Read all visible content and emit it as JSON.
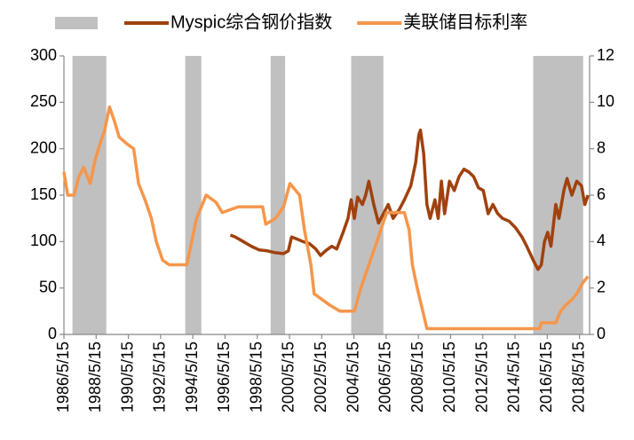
{
  "chart_data": {
    "type": "line",
    "shade_color": "#c0c0c0",
    "shaded_periods": [
      [
        1986.9,
        1989.0
      ],
      [
        1993.9,
        1994.9
      ],
      [
        1999.2,
        2000.1
      ],
      [
        2004.2,
        2006.2
      ],
      [
        2015.5,
        2018.6
      ]
    ],
    "xlim": [
      1986.37,
      2019.0
    ],
    "xticks": [
      {
        "value": 1986.37,
        "label": "1986/5/15"
      },
      {
        "value": 1988.37,
        "label": "1988/5/15"
      },
      {
        "value": 1990.37,
        "label": "1990/5/15"
      },
      {
        "value": 1992.37,
        "label": "1992/5/15"
      },
      {
        "value": 1994.37,
        "label": "1994/5/15"
      },
      {
        "value": 1996.37,
        "label": "1996/5/15"
      },
      {
        "value": 1998.37,
        "label": "1998/5/15"
      },
      {
        "value": 2000.37,
        "label": "2000/5/15"
      },
      {
        "value": 2002.37,
        "label": "2002/5/15"
      },
      {
        "value": 2004.37,
        "label": "2004/5/15"
      },
      {
        "value": 2006.37,
        "label": "2006/5/15"
      },
      {
        "value": 2008.37,
        "label": "2008/5/15"
      },
      {
        "value": 2010.37,
        "label": "2010/5/15"
      },
      {
        "value": 2012.37,
        "label": "2012/5/15"
      },
      {
        "value": 2014.37,
        "label": "2014/5/15"
      },
      {
        "value": 2016.37,
        "label": "2016/5/15"
      },
      {
        "value": 2018.37,
        "label": "2018/5/15"
      }
    ],
    "ylim": [
      0,
      300
    ],
    "yticks": [
      0,
      50,
      100,
      150,
      200,
      250,
      300
    ],
    "y2lim": [
      0,
      12
    ],
    "y2ticks": [
      0,
      2,
      4,
      6,
      8,
      10,
      12
    ],
    "series": [
      {
        "name": "Myspic综合钢价指数",
        "color": "#a0410e",
        "axis": "y",
        "x": [
          1996.7,
          1997.0,
          1997.5,
          1998.0,
          1998.5,
          1999.0,
          1999.5,
          2000.0,
          2000.3,
          2000.5,
          2000.8,
          2001.2,
          2001.6,
          2002.0,
          2002.3,
          2002.6,
          2003.0,
          2003.3,
          2003.7,
          2004.0,
          2004.2,
          2004.4,
          2004.6,
          2004.9,
          2005.1,
          2005.3,
          2005.6,
          2005.9,
          2006.2,
          2006.5,
          2006.8,
          2007.2,
          2007.5,
          2007.9,
          2008.2,
          2008.4,
          2008.5,
          2008.7,
          2008.9,
          2009.1,
          2009.4,
          2009.6,
          2009.8,
          2010.0,
          2010.3,
          2010.6,
          2010.9,
          2011.2,
          2011.5,
          2011.8,
          2012.1,
          2012.4,
          2012.7,
          2013.0,
          2013.3,
          2013.6,
          2014.0,
          2014.4,
          2014.8,
          2015.1,
          2015.5,
          2015.8,
          2016.0,
          2016.2,
          2016.4,
          2016.6,
          2016.9,
          2017.1,
          2017.4,
          2017.6,
          2017.9,
          2018.2,
          2018.5,
          2018.7,
          2018.9
        ],
        "values": [
          107,
          105,
          100,
          95,
          91,
          90,
          88,
          87,
          90,
          105,
          103,
          100,
          98,
          92,
          85,
          90,
          95,
          92,
          110,
          125,
          145,
          125,
          148,
          140,
          150,
          165,
          140,
          120,
          130,
          140,
          125,
          135,
          145,
          160,
          185,
          215,
          220,
          195,
          140,
          125,
          145,
          125,
          165,
          130,
          165,
          155,
          170,
          178,
          175,
          170,
          158,
          155,
          130,
          140,
          130,
          125,
          122,
          115,
          105,
          95,
          80,
          70,
          75,
          100,
          110,
          95,
          140,
          125,
          155,
          168,
          150,
          165,
          160,
          140,
          150
        ]
      },
      {
        "name": "美联储目标利率",
        "color": "#f5964b",
        "axis": "y2",
        "x": [
          1986.37,
          1986.6,
          1987.0,
          1987.3,
          1987.6,
          1988.0,
          1988.3,
          1988.6,
          1988.9,
          1989.2,
          1989.5,
          1989.8,
          1990.3,
          1990.7,
          1991.0,
          1991.4,
          1991.8,
          1992.1,
          1992.5,
          1992.9,
          1993.5,
          1994.0,
          1994.3,
          1994.6,
          1994.9,
          1995.2,
          1995.8,
          1996.2,
          1997.2,
          1998.7,
          1998.9,
          1999.5,
          2000.0,
          2000.4,
          2001.0,
          2001.3,
          2001.7,
          2001.9,
          2002.9,
          2003.5,
          2004.4,
          2004.8,
          2005.3,
          2005.8,
          2006.4,
          2007.5,
          2007.8,
          2008.0,
          2008.3,
          2008.9,
          2015.9,
          2016.0,
          2016.9,
          2017.2,
          2017.5,
          2017.9,
          2018.2,
          2018.6,
          2018.9
        ],
        "values": [
          7.0,
          6.0,
          6.0,
          6.8,
          7.2,
          6.5,
          7.5,
          8.2,
          8.8,
          9.8,
          9.2,
          8.5,
          8.2,
          8.0,
          6.5,
          5.8,
          5.0,
          4.0,
          3.2,
          3.0,
          3.0,
          3.0,
          4.0,
          5.0,
          5.5,
          6.0,
          5.7,
          5.25,
          5.5,
          5.5,
          4.75,
          5.0,
          5.5,
          6.5,
          6.0,
          4.5,
          3.0,
          1.75,
          1.25,
          1.0,
          1.0,
          2.0,
          3.0,
          4.0,
          5.25,
          5.25,
          4.5,
          3.0,
          2.0,
          0.25,
          0.25,
          0.5,
          0.5,
          1.0,
          1.25,
          1.5,
          1.75,
          2.25,
          2.5
        ]
      }
    ]
  }
}
